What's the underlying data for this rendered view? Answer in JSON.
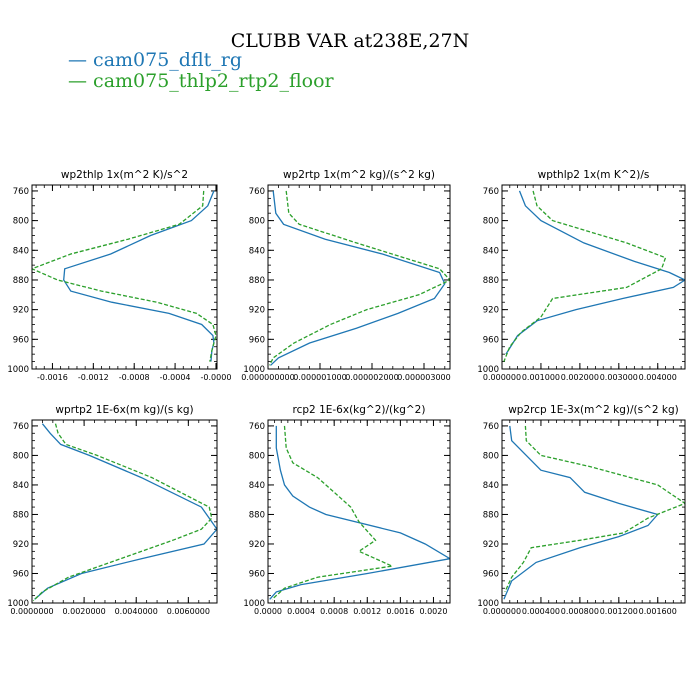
{
  "figure": {
    "title": "CLUBB VAR at238E,27N",
    "legend": [
      {
        "label": "cam075_dflt_rg",
        "color": "#1f77b4",
        "dash": "solid"
      },
      {
        "label": "cam075_thlp2_rtp2_floor",
        "color": "#2ca02c",
        "dash": "dashed"
      }
    ]
  },
  "chart_data": [
    {
      "type": "line",
      "title": "wp2thlp  1x(m^2 K)/s^2",
      "xlim": [
        -0.0018,
        1e-05
      ],
      "xticks": [
        -0.0016,
        -0.0012,
        -0.0008,
        -0.0004,
        -0.0
      ],
      "xtick_labels": [
        "-0.0016",
        "-0.0012",
        "-0.0008",
        "-0.0004",
        "-0.0000"
      ],
      "ylim": [
        1000,
        752
      ],
      "yticks": [
        760,
        800,
        840,
        880,
        920,
        960,
        1000
      ],
      "series": [
        {
          "name": "cam075_dflt_rg",
          "color": "#1f77b4",
          "dash": "solid",
          "x": [
            -2e-05,
            -8e-05,
            -0.00024,
            -0.00064,
            -0.00103,
            -0.00148,
            -0.00149,
            -0.00142,
            -0.00102,
            -0.00046,
            -0.00014,
            -3e-05,
            -2e-05,
            -4e-05,
            -5e-05
          ],
          "y": [
            760,
            780,
            800,
            820,
            845,
            865,
            880,
            895,
            910,
            925,
            940,
            955,
            965,
            975,
            990
          ]
        },
        {
          "name": "cam075_thlp2_rtp2_floor",
          "color": "#2ca02c",
          "dash": "dashed",
          "x": [
            -0.00012,
            -0.00013,
            -0.00036,
            -0.00086,
            -0.00142,
            -0.0018,
            -0.00155,
            -0.00112,
            -0.00058,
            -0.00019,
            -3e-05,
            0.0,
            -2e-05,
            -4e-05,
            -6e-05
          ],
          "y": [
            760,
            780,
            805,
            825,
            845,
            865,
            880,
            895,
            910,
            925,
            940,
            955,
            965,
            975,
            990
          ]
        }
      ]
    },
    {
      "type": "line",
      "title": "wp2rtp  1x(m^2 kg)/(s^2 kg)",
      "xlim": [
        0.0,
        3.5e-06
      ],
      "xticks": [
        0.0,
        1e-06,
        2e-06,
        3e-06
      ],
      "xtick_labels": [
        "0.000000000",
        "0.000001000",
        "0.000002000",
        "0.000003000"
      ],
      "ylim": [
        1000,
        752
      ],
      "yticks": [
        760,
        800,
        840,
        880,
        920,
        960,
        1000
      ],
      "series": [
        {
          "name": "cam075_dflt_rg",
          "color": "#1f77b4",
          "dash": "solid",
          "x": [
            1e-07,
            1.5e-07,
            3e-07,
            1.1e-06,
            2.2e-06,
            3.3e-06,
            3.4e-06,
            3.2e-06,
            2.5e-06,
            1.7e-06,
            8e-07,
            2e-07,
            5e-08
          ],
          "y": [
            760,
            790,
            805,
            825,
            845,
            870,
            885,
            905,
            925,
            945,
            965,
            985,
            995
          ]
        },
        {
          "name": "cam075_thlp2_rtp2_floor",
          "color": "#2ca02c",
          "dash": "dashed",
          "x": [
            3.5e-07,
            4e-07,
            6e-07,
            1.7e-06,
            3.3e-06,
            3.5e-06,
            2.9e-06,
            1.9e-06,
            1.2e-06,
            5e-07,
            1e-07,
            3e-08
          ],
          "y": [
            760,
            790,
            805,
            830,
            865,
            880,
            900,
            920,
            940,
            965,
            985,
            995
          ]
        }
      ]
    },
    {
      "type": "line",
      "title": "wpthlp2  1x(m K^2)/s",
      "xlim": [
        0.0,
        0.0047
      ],
      "xticks": [
        0.0,
        0.001,
        0.002,
        0.003,
        0.004
      ],
      "xtick_labels": [
        "0.000000",
        "0.001000",
        "0.002000",
        "0.003000",
        "0.004000"
      ],
      "ylim": [
        1000,
        752
      ],
      "yticks": [
        760,
        800,
        840,
        880,
        920,
        960,
        1000
      ],
      "series": [
        {
          "name": "cam075_dflt_rg",
          "color": "#1f77b4",
          "dash": "solid",
          "x": [
            0.00045,
            0.0006,
            0.001,
            0.0021,
            0.0034,
            0.0043,
            0.0047,
            0.0044,
            0.0031,
            0.0019,
            0.0009,
            0.0004,
            0.0001
          ],
          "y": [
            760,
            780,
            800,
            830,
            855,
            870,
            880,
            890,
            905,
            920,
            935,
            955,
            980
          ]
        },
        {
          "name": "cam075_thlp2_rtp2_floor",
          "color": "#2ca02c",
          "dash": "dashed",
          "x": [
            0.0008,
            0.0009,
            0.0013,
            0.0032,
            0.0042,
            0.0041,
            0.0032,
            0.0013,
            0.001,
            0.0005,
            0.0002,
            5e-05
          ],
          "y": [
            760,
            780,
            800,
            830,
            850,
            865,
            890,
            905,
            930,
            950,
            970,
            990
          ]
        }
      ]
    },
    {
      "type": "line",
      "title": "wprtp2  1E-6x(m kg)/(s kg)",
      "xlim": [
        0.0,
        0.0071
      ],
      "xticks": [
        0.0,
        0.002,
        0.004,
        0.006
      ],
      "xtick_labels": [
        "0.0000000",
        "0.0020000",
        "0.0040000",
        "0.0060000"
      ],
      "ylim": [
        1000,
        752
      ],
      "yticks": [
        760,
        800,
        840,
        880,
        920,
        960,
        1000
      ],
      "series": [
        {
          "name": "cam075_dflt_rg",
          "color": "#1f77b4",
          "dash": "solid",
          "x": [
            0.0004,
            0.0007,
            0.0011,
            0.0022,
            0.0042,
            0.0065,
            0.0071,
            0.0066,
            0.0042,
            0.0019,
            0.0006,
            0.0001
          ],
          "y": [
            757,
            770,
            785,
            800,
            830,
            870,
            900,
            920,
            940,
            960,
            980,
            995
          ]
        },
        {
          "name": "cam075_thlp2_rtp2_floor",
          "color": "#2ca02c",
          "dash": "dashed",
          "x": [
            0.0009,
            0.001,
            0.0013,
            0.0025,
            0.0046,
            0.0068,
            0.0069,
            0.0065,
            0.0054,
            0.0034,
            0.0014,
            0.0004,
            5e-05
          ],
          "y": [
            757,
            770,
            785,
            800,
            830,
            870,
            885,
            900,
            915,
            940,
            965,
            985,
            997
          ]
        }
      ]
    },
    {
      "type": "line",
      "title": "rcp2  1E-6x(kg^2)/(kg^2)",
      "xlim": [
        0.0,
        0.0022
      ],
      "xticks": [
        0.0,
        0.0004,
        0.0008,
        0.0012,
        0.0016,
        0.002
      ],
      "xtick_labels": [
        "0.0000",
        "0.0004",
        "0.0008",
        "0.0012",
        "0.0016",
        "0.0020"
      ],
      "ylim": [
        1000,
        752
      ],
      "yticks": [
        760,
        800,
        840,
        880,
        920,
        960,
        1000
      ],
      "series": [
        {
          "name": "cam075_dflt_rg",
          "color": "#1f77b4",
          "dash": "solid",
          "x": [
            0.0001,
            0.0001,
            0.00015,
            0.0002,
            0.0003,
            0.0005,
            0.0007,
            0.0016,
            0.0019,
            0.0022,
            0.0012,
            0.0004,
            0.0001,
            2e-05
          ],
          "y": [
            760,
            790,
            820,
            840,
            855,
            870,
            880,
            905,
            920,
            940,
            960,
            975,
            985,
            995
          ]
        },
        {
          "name": "cam075_thlp2_rtp2_floor",
          "color": "#2ca02c",
          "dash": "dashed",
          "x": [
            0.0002,
            0.00022,
            0.0003,
            0.0006,
            0.0008,
            0.001,
            0.0011,
            0.0013,
            0.0011,
            0.0015,
            0.0006,
            0.0002,
            5e-05
          ],
          "y": [
            760,
            790,
            810,
            830,
            850,
            870,
            890,
            915,
            930,
            950,
            965,
            980,
            995
          ]
        }
      ]
    },
    {
      "type": "line",
      "title": "wp2rcp  1E-3x(m^2 kg)/(s^2 kg)",
      "xlim": [
        0.0,
        0.00188
      ],
      "xticks": [
        0.0,
        0.0004,
        0.0008,
        0.0012,
        0.0016
      ],
      "xtick_labels": [
        "0.000000",
        "0.000400",
        "0.000800",
        "0.001200",
        "0.001600"
      ],
      "ylim": [
        1000,
        752
      ],
      "yticks": [
        760,
        800,
        840,
        880,
        920,
        960,
        1000
      ],
      "series": [
        {
          "name": "cam075_dflt_rg",
          "color": "#1f77b4",
          "dash": "solid",
          "x": [
            8e-05,
            0.0001,
            0.00025,
            0.0004,
            0.0007,
            0.00085,
            0.0012,
            0.0016,
            0.0015,
            0.0012,
            0.0008,
            0.00035,
            0.0001,
            2e-05
          ],
          "y": [
            760,
            780,
            800,
            820,
            830,
            850,
            865,
            880,
            895,
            910,
            925,
            945,
            970,
            995
          ]
        },
        {
          "name": "cam075_thlp2_rtp2_floor",
          "color": "#2ca02c",
          "dash": "dashed",
          "x": [
            0.00024,
            0.00025,
            0.0004,
            0.0009,
            0.0016,
            0.00188,
            0.0015,
            0.00125,
            0.0008,
            0.0003,
            0.00022,
            0.0001,
            3e-05
          ],
          "y": [
            760,
            780,
            800,
            815,
            840,
            865,
            885,
            905,
            915,
            925,
            945,
            965,
            985
          ]
        }
      ]
    }
  ]
}
